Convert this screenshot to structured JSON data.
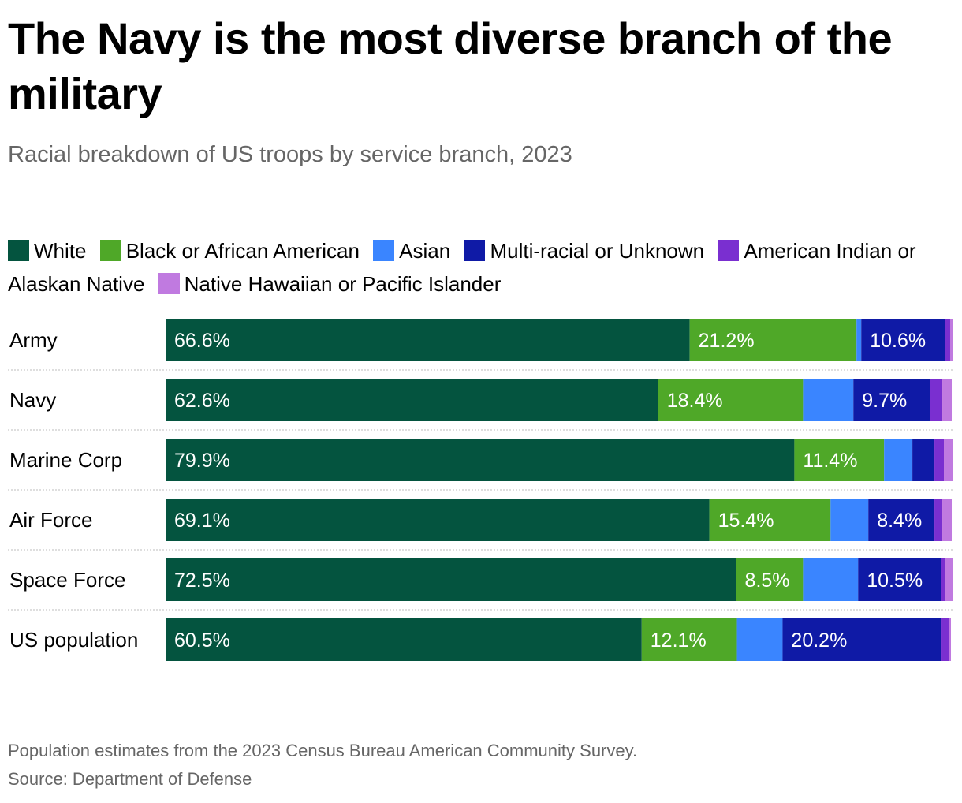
{
  "title": "The Navy is the most diverse branch of the military",
  "subtitle": "Racial breakdown of US troops by service branch, 2023",
  "legend": [
    {
      "label": "White",
      "color": "#04543f"
    },
    {
      "label": "Black or African American",
      "color": "#4fa828"
    },
    {
      "label": "Asian",
      "color": "#3a85ff"
    },
    {
      "label": "Multi-racial or Unknown",
      "color": "#0f1aa6"
    },
    {
      "label": "American Indian or Alaskan Native",
      "color": "#7a2fd0"
    },
    {
      "label": "Native Hawaiian or Pacific Islander",
      "color": "#c07ae0"
    }
  ],
  "chart_data": {
    "type": "bar",
    "orientation": "horizontal",
    "stacked": true,
    "title": "The Navy is the most diverse branch of the military",
    "subtitle": "Racial breakdown of US troops by service branch, 2023",
    "categories": [
      "Army",
      "Navy",
      "Marine Corp",
      "Air Force",
      "Space Force",
      "US population"
    ],
    "xlim": [
      0,
      100
    ],
    "series": [
      {
        "name": "White",
        "color": "#04543f",
        "values": [
          66.6,
          62.6,
          79.9,
          69.1,
          72.5,
          60.5
        ],
        "labels": [
          "66.6%",
          "62.6%",
          "79.9%",
          "69.1%",
          "72.5%",
          "60.5%"
        ]
      },
      {
        "name": "Black or African American",
        "color": "#4fa828",
        "values": [
          21.2,
          18.4,
          11.4,
          15.4,
          8.5,
          12.1
        ],
        "labels": [
          "21.2%",
          "18.4%",
          "11.4%",
          "15.4%",
          "8.5%",
          "12.1%"
        ]
      },
      {
        "name": "Asian",
        "color": "#3a85ff",
        "values": [
          0.6,
          6.4,
          3.6,
          4.8,
          7.0,
          5.8
        ],
        "labels": [
          "",
          "",
          "",
          "",
          "",
          ""
        ]
      },
      {
        "name": "Multi-racial or Unknown",
        "color": "#0f1aa6",
        "values": [
          10.6,
          9.7,
          2.8,
          8.4,
          10.5,
          20.2
        ],
        "labels": [
          "10.6%",
          "9.7%",
          "",
          "8.4%",
          "10.5%",
          "20.2%"
        ]
      },
      {
        "name": "American Indian or Alaskan Native",
        "color": "#7a2fd0",
        "values": [
          0.7,
          1.6,
          1.2,
          1.0,
          0.6,
          1.0
        ],
        "labels": [
          "",
          "",
          "",
          "",
          "",
          ""
        ]
      },
      {
        "name": "Native Hawaiian or Pacific Islander",
        "color": "#c07ae0",
        "values": [
          0.3,
          1.2,
          1.1,
          1.2,
          0.9,
          0.2
        ],
        "labels": [
          "",
          "",
          "",
          "",
          "",
          ""
        ]
      }
    ]
  },
  "note": "Population estimates from the 2023 Census Bureau American Community Survey.",
  "source": "Source: Department of Defense"
}
